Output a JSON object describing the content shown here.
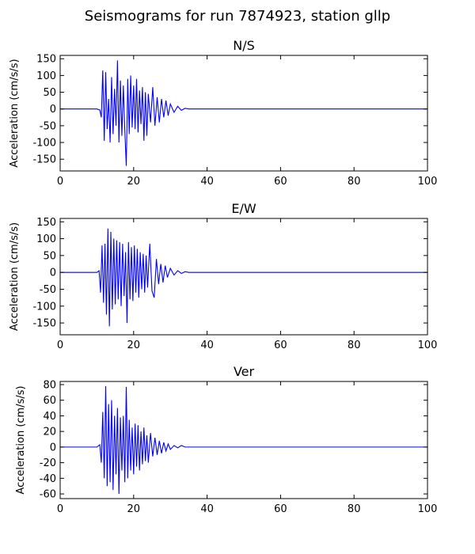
{
  "figure_title": "Seismograms for run 7874923, station gllp",
  "colors": {
    "trace": "#0000ff",
    "axes": "#000000",
    "background": "#ffffff"
  },
  "chart_data": [
    {
      "type": "line",
      "title": "N/S",
      "xlabel": "",
      "ylabel": "Acceleration (cm/s/s)",
      "xlim": [
        0,
        100
      ],
      "ylim": [
        -185,
        160
      ],
      "xticks": [
        0,
        20,
        40,
        60,
        80,
        100
      ],
      "yticks": [
        150,
        100,
        50,
        0,
        -50,
        -100,
        -150
      ],
      "grid": false,
      "series": [
        {
          "x": [
            0,
            10,
            10.8,
            11.2,
            11.6,
            12.0,
            12.4,
            12.8,
            13.2,
            13.6,
            14.0,
            14.4,
            14.8,
            15.2,
            15.6,
            16.0,
            16.4,
            16.8,
            17.2,
            17.6,
            18.0,
            18.4,
            18.8,
            19.2,
            19.6,
            20.0,
            20.4,
            20.8,
            21.2,
            21.6,
            22.0,
            22.4,
            22.8,
            23.2,
            23.6,
            24.0,
            24.6,
            25.2,
            25.8,
            26.4,
            27.0,
            27.6,
            28.2,
            28.8,
            29.4,
            30.0,
            31.0,
            32.0,
            33.0,
            34.0,
            35.0,
            100
          ],
          "y": [
            0,
            0,
            -3,
            -25,
            115,
            -95,
            110,
            -60,
            30,
            -100,
            95,
            -75,
            60,
            -50,
            145,
            -100,
            85,
            -80,
            70,
            -65,
            -170,
            90,
            -75,
            100,
            -55,
            70,
            -60,
            90,
            -70,
            55,
            -45,
            65,
            -95,
            50,
            -80,
            45,
            -40,
            65,
            -50,
            35,
            -40,
            30,
            -25,
            25,
            -20,
            15,
            -10,
            8,
            -4,
            2,
            0,
            0
          ]
        }
      ]
    },
    {
      "type": "line",
      "title": "E/W",
      "xlabel": "",
      "ylabel": "Acceleration (cm/s/s)",
      "xlim": [
        0,
        100
      ],
      "ylim": [
        -185,
        160
      ],
      "xticks": [
        0,
        20,
        40,
        60,
        80,
        100
      ],
      "yticks": [
        150,
        100,
        50,
        0,
        -50,
        -100,
        -150
      ],
      "grid": false,
      "series": [
        {
          "x": [
            0,
            10,
            10.6,
            11.0,
            11.4,
            11.8,
            12.2,
            12.6,
            13.0,
            13.4,
            13.8,
            14.2,
            14.6,
            15.0,
            15.4,
            15.8,
            16.2,
            16.6,
            17.0,
            17.4,
            17.8,
            18.2,
            18.6,
            19.0,
            19.4,
            19.8,
            20.2,
            20.6,
            21.0,
            21.4,
            21.8,
            22.2,
            22.6,
            23.0,
            23.4,
            23.8,
            24.4,
            25.0,
            25.6,
            26.2,
            26.8,
            27.4,
            28.0,
            28.6,
            29.2,
            30.0,
            31.0,
            32.0,
            33.0,
            34.0,
            35.0,
            100
          ],
          "y": [
            0,
            0,
            5,
            -60,
            80,
            -90,
            85,
            -125,
            130,
            -160,
            120,
            -110,
            100,
            -95,
            95,
            -80,
            90,
            -100,
            85,
            -70,
            60,
            -150,
            90,
            -80,
            75,
            -85,
            80,
            -60,
            70,
            -75,
            60,
            -50,
            55,
            -60,
            50,
            -45,
            85,
            -55,
            -75,
            40,
            -35,
            25,
            -30,
            20,
            -15,
            12,
            -8,
            5,
            -3,
            2,
            0,
            0
          ]
        }
      ]
    },
    {
      "type": "line",
      "title": "Ver",
      "xlabel": "",
      "ylabel": "Acceleration (cm/s/s)",
      "xlim": [
        0,
        100
      ],
      "ylim": [
        -66,
        84
      ],
      "xticks": [
        0,
        20,
        40,
        60,
        80,
        100
      ],
      "yticks": [
        80,
        60,
        40,
        20,
        0,
        -20,
        -40,
        -60
      ],
      "grid": false,
      "series": [
        {
          "x": [
            0,
            10,
            10.8,
            11.2,
            11.6,
            12.0,
            12.4,
            12.8,
            13.2,
            13.6,
            14.0,
            14.4,
            14.8,
            15.2,
            15.6,
            16.0,
            16.4,
            16.8,
            17.2,
            17.6,
            18.0,
            18.4,
            18.8,
            19.2,
            19.6,
            20.0,
            20.4,
            20.8,
            21.2,
            21.6,
            22.0,
            22.4,
            22.8,
            23.2,
            23.6,
            24.0,
            24.6,
            25.2,
            25.8,
            26.4,
            27.0,
            27.6,
            28.2,
            28.8,
            29.4,
            30.0,
            31.0,
            32.0,
            33.0,
            34.0,
            35.0,
            100
          ],
          "y": [
            0,
            0,
            3,
            -20,
            45,
            -40,
            78,
            -50,
            55,
            -45,
            60,
            -55,
            40,
            -35,
            50,
            -60,
            38,
            -30,
            40,
            -45,
            77,
            -40,
            35,
            -30,
            25,
            -35,
            30,
            -25,
            28,
            -30,
            20,
            -22,
            25,
            -18,
            15,
            -20,
            18,
            -12,
            12,
            -10,
            8,
            -8,
            6,
            -5,
            4,
            -3,
            2,
            -1,
            2,
            0,
            0,
            0
          ]
        }
      ]
    }
  ]
}
